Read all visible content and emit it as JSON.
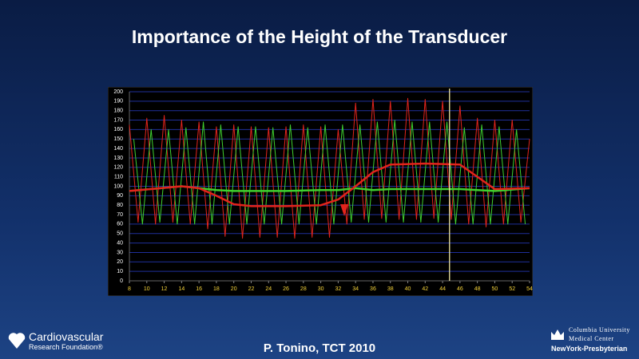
{
  "header": {
    "title": "Importance of the Height of the Transducer"
  },
  "footer": {
    "text": "P. Tonino, TCT 2010",
    "logo_left": [
      "Cardiovascular",
      "Research Foundation®"
    ],
    "logo_right": [
      "Columbia University",
      "Medical Center",
      "NewYork-Presbyterian"
    ]
  },
  "chart_data": {
    "type": "line",
    "xlim": [
      8,
      54
    ],
    "ylim": [
      0,
      200
    ],
    "xticks": [
      8,
      10,
      12,
      14,
      16,
      18,
      20,
      22,
      24,
      26,
      28,
      30,
      32,
      34,
      36,
      38,
      40,
      42,
      44,
      46,
      48,
      50,
      52,
      54
    ],
    "yticks": [
      0,
      10,
      20,
      30,
      40,
      50,
      60,
      70,
      80,
      90,
      100,
      110,
      120,
      130,
      140,
      150,
      160,
      170,
      180,
      190,
      200
    ],
    "grid": true,
    "cursor_x": 44.8,
    "series": [
      {
        "color": "#e2241c",
        "width": 1,
        "x": [
          8,
          9,
          10,
          11,
          12,
          13,
          14,
          15,
          16,
          17,
          18,
          19,
          20,
          21,
          22,
          23,
          24,
          25,
          26,
          27,
          28,
          29,
          30,
          31,
          32,
          33,
          34,
          35,
          36,
          37,
          38,
          39,
          40,
          41,
          42,
          43,
          44,
          45,
          46,
          47,
          48,
          49,
          50,
          51,
          52,
          53,
          54
        ],
        "values": [
          165,
          62,
          172,
          60,
          175,
          62,
          170,
          60,
          168,
          55,
          163,
          47,
          165,
          45,
          163,
          46,
          162,
          46,
          163,
          45,
          165,
          46,
          163,
          46,
          160,
          60,
          188,
          65,
          192,
          66,
          190,
          65,
          193,
          65,
          192,
          66,
          190,
          65,
          185,
          60,
          172,
          57,
          170,
          60,
          170,
          62,
          150
        ]
      },
      {
        "color": "#3fcf2f",
        "width": 1,
        "x": [
          8.5,
          9.5,
          10.5,
          11.5,
          12.5,
          13.5,
          14.5,
          15.5,
          16.5,
          17.5,
          18.5,
          19.5,
          20.5,
          21.5,
          22.5,
          23.5,
          24.5,
          25.5,
          26.5,
          27.5,
          28.5,
          29.5,
          30.5,
          31.5,
          32.5,
          33.5,
          34.5,
          35.5,
          36.5,
          37.5,
          38.5,
          39.5,
          40.5,
          41.5,
          42.5,
          43.5,
          44.5,
          45.5,
          46.5,
          47.5,
          48.5,
          49.5,
          50.5,
          51.5,
          52.5,
          53.5
        ],
        "values": [
          150,
          60,
          160,
          62,
          160,
          60,
          162,
          60,
          168,
          60,
          165,
          60,
          163,
          60,
          163,
          60,
          162,
          60,
          165,
          60,
          162,
          60,
          165,
          60,
          165,
          62,
          165,
          62,
          168,
          62,
          170,
          62,
          168,
          62,
          168,
          62,
          168,
          60,
          162,
          60,
          165,
          60,
          163,
          60,
          160,
          60
        ]
      },
      {
        "color": "#3fcf2f",
        "width": 2.5,
        "x": [
          8,
          14,
          16,
          18,
          20,
          22,
          26,
          30,
          32,
          34,
          36,
          38,
          42,
          46,
          48,
          50,
          54
        ],
        "values": [
          95,
          100,
          98,
          96,
          95,
          95,
          95,
          96,
          96,
          98,
          96,
          97,
          97,
          97,
          96,
          95,
          98
        ]
      },
      {
        "color": "#e2241c",
        "width": 2.5,
        "x": [
          8,
          14,
          16,
          18,
          20,
          22,
          26,
          30,
          32,
          34,
          36,
          38,
          42,
          46,
          48,
          50,
          54
        ],
        "values": [
          95,
          100,
          98,
          90,
          81,
          79,
          79,
          80,
          86,
          100,
          115,
          123,
          124,
          123,
          110,
          97,
          98
        ]
      }
    ]
  }
}
